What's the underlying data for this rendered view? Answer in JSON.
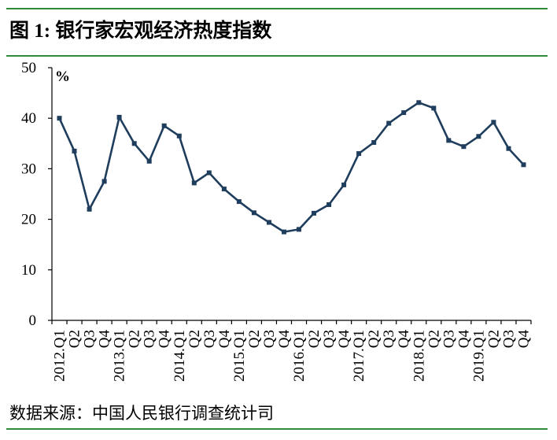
{
  "header": {
    "title": "图 1:  银行家宏观经济热度指数"
  },
  "footer": {
    "source": "数据来源：中国人民银行调查统计司"
  },
  "colors": {
    "rule": "#2e8b3a",
    "series": "#1f3d5c",
    "axis": "#000000"
  },
  "chart_data": {
    "type": "line",
    "title": "",
    "unit": "%",
    "xlabel": "",
    "ylabel": "",
    "ylim": [
      0,
      50
    ],
    "yticks": [
      0,
      10,
      20,
      30,
      40,
      50
    ],
    "grid": false,
    "legend": "none",
    "categories": [
      "2012.Q1",
      "Q2",
      "Q3",
      "Q4",
      "2013.Q1",
      "Q2",
      "Q3",
      "Q4",
      "2014.Q1",
      "Q2",
      "Q3",
      "Q4",
      "2015.Q1",
      "Q2",
      "Q3",
      "Q4",
      "2016.Q1",
      "Q2",
      "Q3",
      "Q4",
      "2017.Q1",
      "Q2",
      "Q3",
      "Q4",
      "2018.Q1",
      "Q2",
      "Q3",
      "Q4",
      "2019.Q1",
      "Q2",
      "Q3",
      "Q4"
    ],
    "series": [
      {
        "values": [
          40,
          33.5,
          22,
          27.5,
          40.2,
          35,
          31.5,
          38.5,
          36.5,
          27.2,
          29.2,
          26,
          23.5,
          21.3,
          19.4,
          17.5,
          18,
          21.2,
          22.9,
          26.8,
          33,
          35.2,
          39,
          41.1,
          43.1,
          42,
          35.6,
          34.4,
          36.4,
          39.2,
          34,
          30.8
        ]
      }
    ]
  }
}
